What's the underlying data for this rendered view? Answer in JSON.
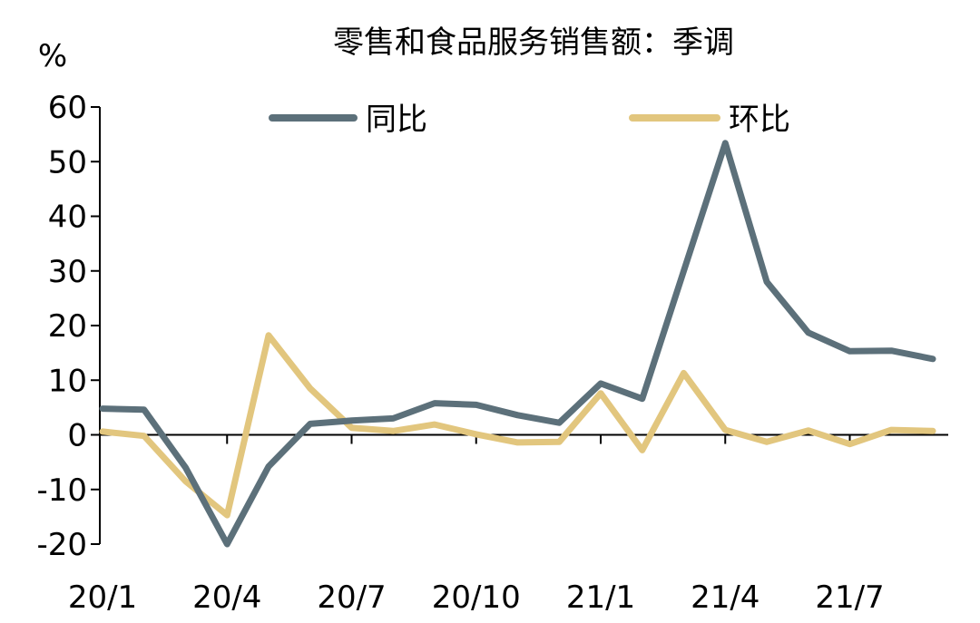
{
  "chart_data": {
    "type": "line",
    "title": "零售和食品服务销售额：季调",
    "ylabel": "%",
    "ylim": [
      -20,
      60
    ],
    "yticks": [
      "60",
      "50",
      "40",
      "30",
      "20",
      "10",
      "0",
      "-10",
      "-20"
    ],
    "xticklabels": [
      "20/1",
      "20/4",
      "20/7",
      "20/10",
      "21/1",
      "21/4",
      "21/7"
    ],
    "x": [
      "20/1",
      "20/2",
      "20/3",
      "20/4",
      "20/5",
      "20/6",
      "20/7",
      "20/8",
      "20/9",
      "20/10",
      "20/11",
      "20/12",
      "21/1",
      "21/2",
      "21/3",
      "21/4",
      "21/5",
      "21/6",
      "21/7",
      "21/8",
      "21/9"
    ],
    "legend": "top",
    "grid": false,
    "series": [
      {
        "name": "同比",
        "color": "#5c707a",
        "values": [
          4.8,
          4.6,
          -6.0,
          -20.0,
          -5.8,
          2.0,
          2.6,
          3.0,
          5.8,
          5.5,
          3.6,
          2.2,
          9.4,
          6.6,
          30.0,
          53.4,
          28.0,
          18.7,
          15.3,
          15.4,
          13.9
        ]
      },
      {
        "name": "环比",
        "color": "#e2c67e",
        "values": [
          0.6,
          -0.2,
          -8.5,
          -14.7,
          18.2,
          8.5,
          1.3,
          0.7,
          1.9,
          0.1,
          -1.4,
          -1.3,
          7.6,
          -2.8,
          11.3,
          0.9,
          -1.3,
          0.8,
          -1.7,
          0.9,
          0.7
        ]
      }
    ]
  }
}
